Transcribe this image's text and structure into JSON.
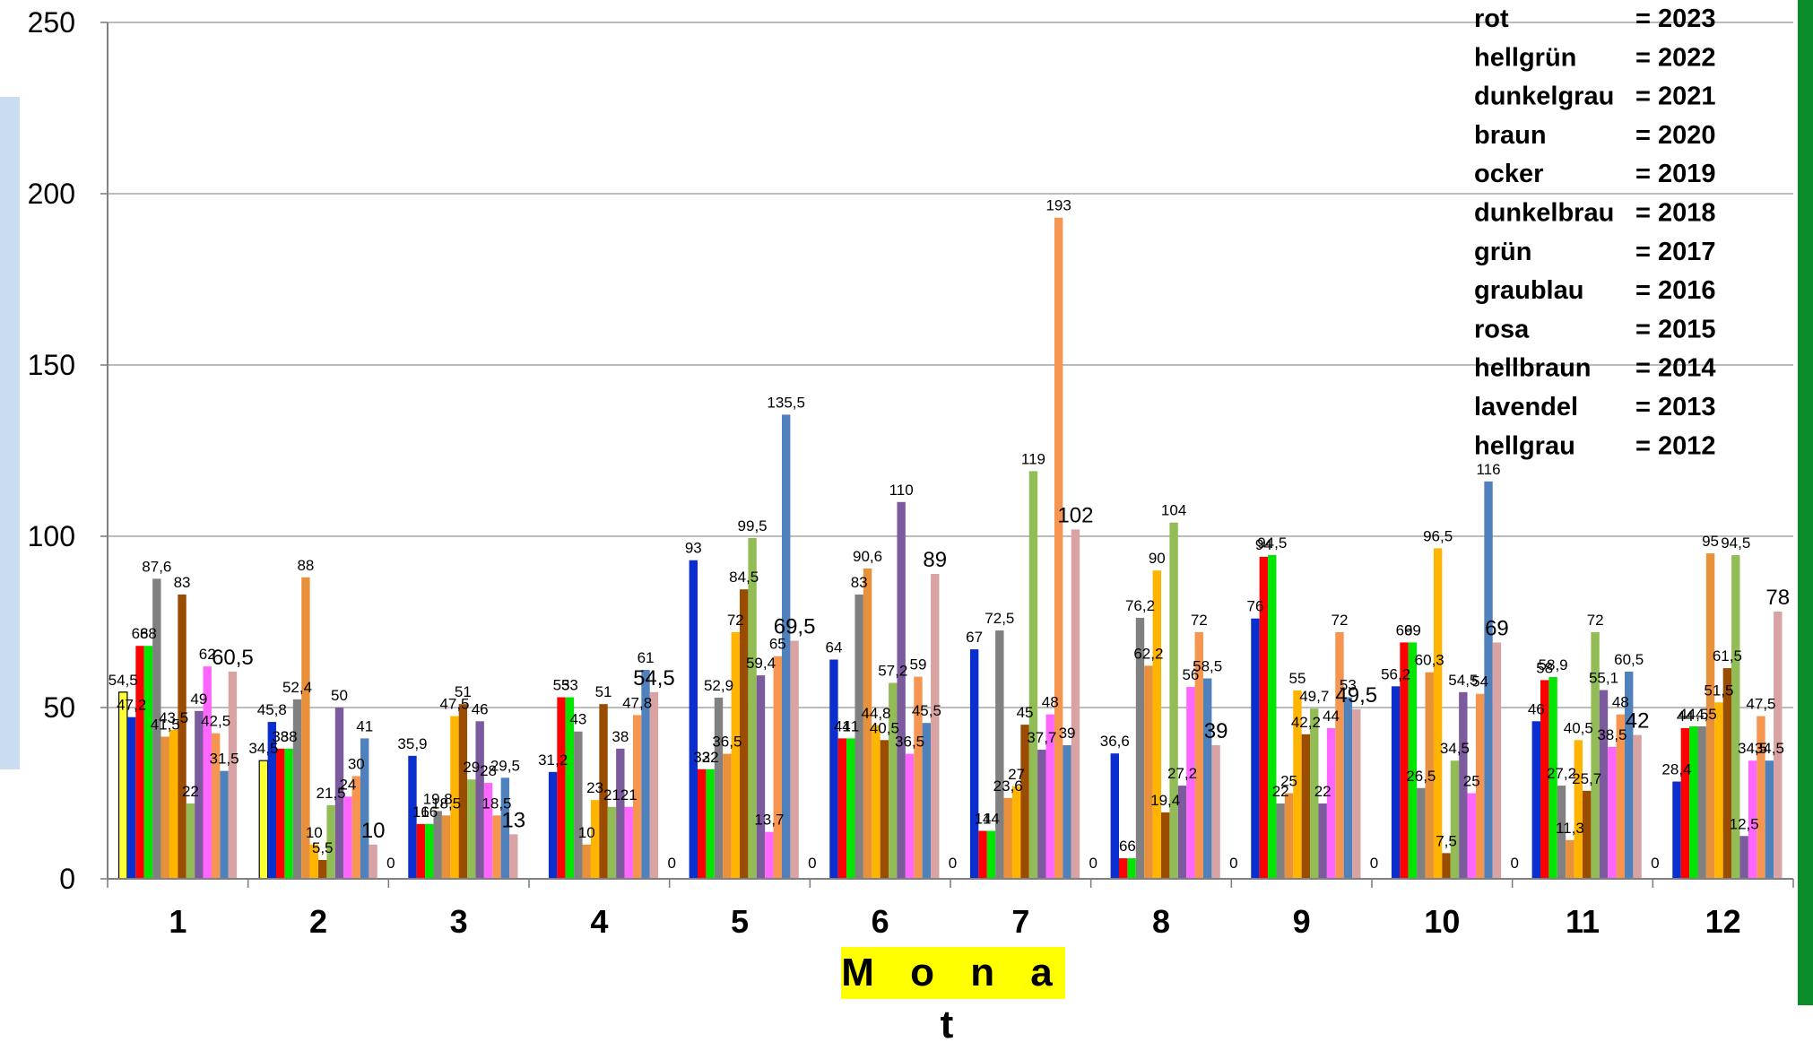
{
  "chart_data": {
    "type": "bar",
    "title": "",
    "xlabel": "M o n a t",
    "ylabel": "",
    "ylim": [
      0,
      250
    ],
    "yticks": [
      0,
      50,
      100,
      150,
      200,
      250
    ],
    "grid": true,
    "legend_position": "top-right",
    "categories": [
      "1",
      "2",
      "3",
      "4",
      "5",
      "6",
      "7",
      "8",
      "9",
      "10",
      "11",
      "12"
    ],
    "series": [
      {
        "name": "",
        "color": "#ffff33",
        "values": [
          54.5,
          34.5,
          null,
          null,
          null,
          null,
          null,
          null,
          null,
          null,
          null,
          null
        ],
        "labels": [
          "54,5",
          "34,5",
          "",
          "",
          "",
          "",
          "",
          "",
          "",
          "",
          "",
          ""
        ]
      },
      {
        "name": "",
        "color": "#0b2fcf",
        "values": [
          47.2,
          45.8,
          35.9,
          31.2,
          93,
          64,
          67,
          36.6,
          76,
          56.2,
          46,
          28.4
        ],
        "labels": [
          "47,2",
          "45,8",
          "35,9",
          "31,2",
          "93",
          "64",
          "67",
          "36,6",
          "76",
          "56,2",
          "46",
          "28,4"
        ]
      },
      {
        "name": "rot",
        "color": "#ff0000",
        "values": [
          68,
          38,
          16,
          53,
          32,
          41,
          14,
          6,
          94,
          69,
          58,
          44
        ],
        "labels": [
          "68",
          "38",
          "16",
          "53",
          "32",
          "41",
          "14",
          "6",
          "94",
          "69",
          "58",
          "44"
        ]
      },
      {
        "name": "grün",
        "color": "#00e600",
        "values": [
          68,
          38,
          16,
          53,
          32,
          41,
          14,
          6,
          94.5,
          69,
          58.9,
          44.5
        ],
        "labels": [
          "68",
          "38",
          "16",
          "53",
          "32",
          "41",
          "14",
          "6",
          "94,5",
          "69",
          "58,9",
          "44,5"
        ]
      },
      {
        "name": "dunkelgrau",
        "color": "#808080",
        "values": [
          87.6,
          52.4,
          19.8,
          43,
          52.9,
          83,
          72.5,
          76.2,
          22,
          26.5,
          27.2,
          44.5
        ],
        "labels": [
          "87,6",
          "52,4",
          "19,8",
          "43",
          "52,9",
          "83",
          "72,5",
          "76,2",
          "22",
          "26,5",
          "27,2",
          "44,5"
        ]
      },
      {
        "name": "ocker",
        "color": "#e8903a",
        "values": [
          41.5,
          88,
          18.5,
          10,
          36.5,
          90.6,
          23.6,
          62.2,
          25,
          60.3,
          11.3,
          95
        ],
        "labels": [
          "41,5",
          "88",
          "18,5",
          "10",
          "36,5",
          "90,6",
          "23,6",
          "62,2",
          "25",
          "60,3",
          "11,3",
          "95"
        ]
      },
      {
        "name": "",
        "color": "#ffb400",
        "values": [
          43.5,
          10,
          47.5,
          23,
          72,
          44.8,
          27,
          90,
          55,
          96.5,
          40.5,
          51.5
        ],
        "labels": [
          "43,5",
          "10",
          "47,5",
          "23",
          "72",
          "44,8",
          "27",
          "90",
          "55",
          "96,5",
          "40,5",
          "51,5"
        ]
      },
      {
        "name": "dunkelbrau",
        "color": "#9a4c00",
        "values": [
          83,
          5.5,
          51,
          51,
          84.5,
          40.5,
          45,
          19.4,
          42.2,
          7.5,
          25.7,
          61.5
        ],
        "labels": [
          "83",
          "5,5",
          "51",
          "51",
          "84,5",
          "40,5",
          "45",
          "19,4",
          "42,2",
          "7,5",
          "25,7",
          "61,5"
        ]
      },
      {
        "name": "hellgrün",
        "color": "#92bc55",
        "values": [
          22,
          21.5,
          29,
          21,
          99.5,
          57.2,
          119,
          104,
          49.7,
          34.5,
          72,
          94.5
        ],
        "labels": [
          "22",
          "21,5",
          "29",
          "21",
          "99,5",
          "57,2",
          "119",
          "104",
          "49,7",
          "34,5",
          "72",
          "94,5"
        ]
      },
      {
        "name": "lavendel",
        "color": "#7c5a9e",
        "values": [
          49,
          50,
          46,
          38,
          59.4,
          110,
          37.7,
          27.2,
          22,
          54.5,
          55.1,
          12.5
        ],
        "labels": [
          "49",
          "50",
          "46",
          "38",
          "59,4",
          "110",
          "37,7",
          "27,2",
          "22",
          "54,5",
          "55,1",
          "12,5"
        ]
      },
      {
        "name": "rosa",
        "color": "#ff66ff",
        "values": [
          62,
          24,
          28,
          21,
          13.7,
          36.5,
          48,
          56,
          44,
          25,
          38.5,
          34.5
        ],
        "labels": [
          "62",
          "24",
          "28",
          "21",
          "13,7",
          "36,5",
          "48",
          "56",
          "44",
          "25",
          "38,5",
          "34,5"
        ]
      },
      {
        "name": "",
        "color": "#f6954f",
        "values": [
          42.5,
          30,
          18.5,
          47.8,
          65,
          59,
          193,
          72,
          72,
          54,
          48,
          47.5
        ],
        "labels": [
          "42,5",
          "30",
          "18,5",
          "47,8",
          "65",
          "59",
          "193",
          "72",
          "72",
          "54",
          "48",
          "47,5"
        ]
      },
      {
        "name": "graublau",
        "color": "#4f81bd",
        "values": [
          31.5,
          41,
          29.5,
          61,
          135.5,
          45.5,
          39,
          58.5,
          53,
          116,
          60.5,
          34.5
        ],
        "labels": [
          "31,5",
          "41",
          "29,5",
          "61",
          "135,5",
          "45,5",
          "39",
          "58,5",
          "53",
          "116",
          "60,5",
          "34,5"
        ]
      },
      {
        "name": "",
        "color": "#d9a3a3",
        "values": [
          60.5,
          10,
          13,
          54.5,
          69.5,
          89,
          102,
          39,
          49.5,
          69,
          42,
          78
        ],
        "labels": [
          "60,5",
          "10",
          "13",
          "54,5",
          "69,5",
          "89",
          "102",
          "39",
          "49,5",
          "69",
          "42",
          "78"
        ]
      }
    ],
    "zero_labels": [
      "",
      "",
      "0",
      "",
      "0",
      "0",
      "0",
      "0",
      "0",
      "0",
      "0",
      "0"
    ],
    "legend": [
      {
        "name": "rot",
        "eq": "= 2023"
      },
      {
        "name": "hellgrün",
        "eq": "= 2022"
      },
      {
        "name": "dunkelgrau",
        "eq": "= 2021"
      },
      {
        "name": "braun",
        "eq": "= 2020"
      },
      {
        "name": "ocker",
        "eq": "= 2019"
      },
      {
        "name": "dunkelbrau",
        "eq": "= 2018"
      },
      {
        "name": "grün",
        "eq": "= 2017"
      },
      {
        "name": "graublau",
        "eq": "= 2016"
      },
      {
        "name": "rosa",
        "eq": "= 2015"
      },
      {
        "name": "hellbraun",
        "eq": "= 2014"
      },
      {
        "name": "lavendel",
        "eq": "= 2013"
      },
      {
        "name": "hellgrau",
        "eq": "= 2012"
      }
    ]
  },
  "colors": {
    "x_title_background": "#ffff00",
    "y_title_background": "#c9dcf0",
    "right_border": "#0a8c2a",
    "gridline": "#a6a6a6"
  }
}
